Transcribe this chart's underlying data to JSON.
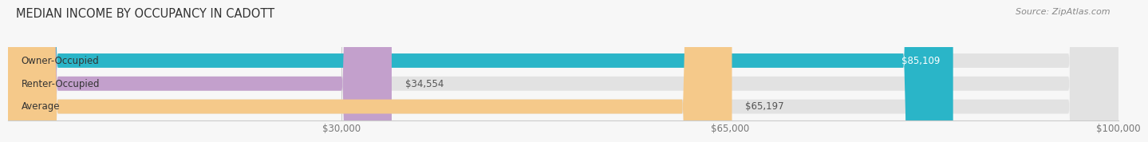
{
  "title": "MEDIAN INCOME BY OCCUPANCY IN CADOTT",
  "source": "Source: ZipAtlas.com",
  "categories": [
    "Owner-Occupied",
    "Renter-Occupied",
    "Average"
  ],
  "values": [
    85109,
    34554,
    65197
  ],
  "bar_colors": [
    "#2ab5c8",
    "#c3a0cc",
    "#f5c98a"
  ],
  "bar_bg_color": "#e2e2e2",
  "value_labels": [
    "$85,109",
    "$34,554",
    "$65,197"
  ],
  "value_label_colors": [
    "#ffffff",
    "#555555",
    "#555555"
  ],
  "value_label_inside": [
    true,
    false,
    false
  ],
  "xlim": [
    0,
    100000
  ],
  "xticks": [
    30000,
    65000,
    100000
  ],
  "xtick_labels": [
    "$30,000",
    "$65,000",
    "$100,000"
  ],
  "title_fontsize": 10.5,
  "label_fontsize": 8.5,
  "value_fontsize": 8.5,
  "source_fontsize": 8,
  "bar_height": 0.62,
  "bar_gap": 0.38,
  "background_color": "#f7f7f7"
}
